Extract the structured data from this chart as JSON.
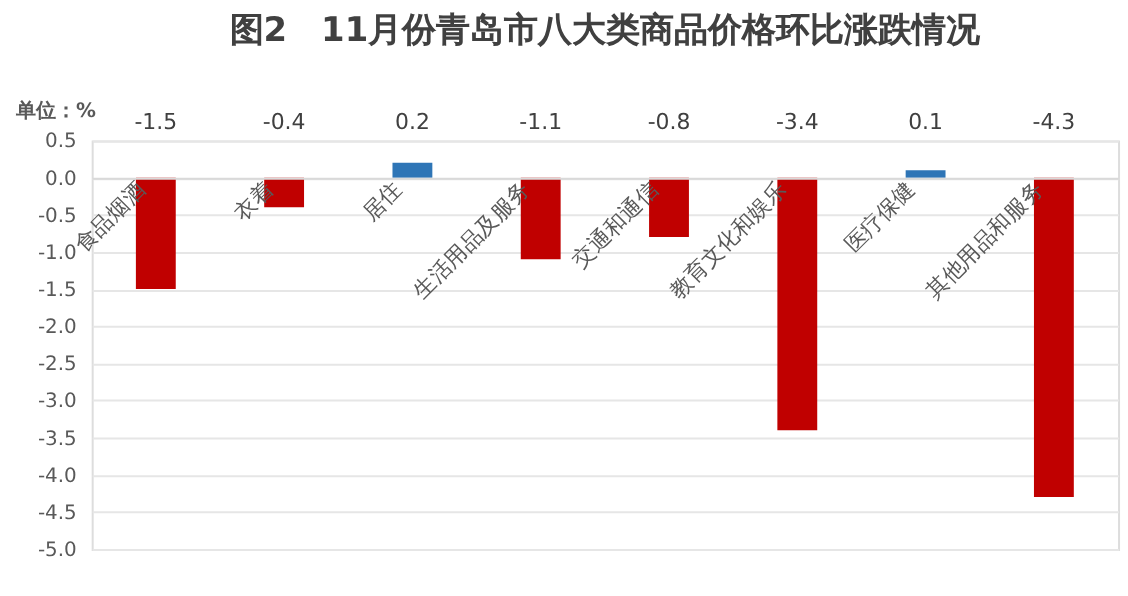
{
  "chart_data": {
    "type": "bar",
    "title": "图2　11月份青岛市八大类商品价格环比涨跌情况",
    "ylabel": "单位：%",
    "categories": [
      "食品烟酒",
      "衣着",
      "居住",
      "生活用品及服务",
      "交通和通信",
      "教育文化和娱乐",
      "医疗保健",
      "其他用品和服务"
    ],
    "values": [
      -1.5,
      -0.4,
      0.2,
      -1.1,
      -0.8,
      -3.4,
      0.1,
      -4.3
    ],
    "colors": [
      "#c00000",
      "#c00000",
      "#2e75b6",
      "#c00000",
      "#c00000",
      "#c00000",
      "#2e75b6",
      "#c00000"
    ],
    "ylim": [
      -5.0,
      0.5
    ],
    "yticks": [
      0.5,
      {
        "value": 0,
        "label": "0.0"
      },
      -0.5,
      {
        "value": -1,
        "label": "-1.0"
      },
      -1.5,
      {
        "value": -2,
        "label": "-2.0"
      },
      -2.5,
      {
        "value": -3,
        "label": "-3.0"
      },
      -3.5,
      {
        "value": -4,
        "label": "-4.0"
      },
      -4.5,
      {
        "value": -5,
        "label": "-5.0"
      }
    ],
    "data_labels": true,
    "grid": "y"
  }
}
